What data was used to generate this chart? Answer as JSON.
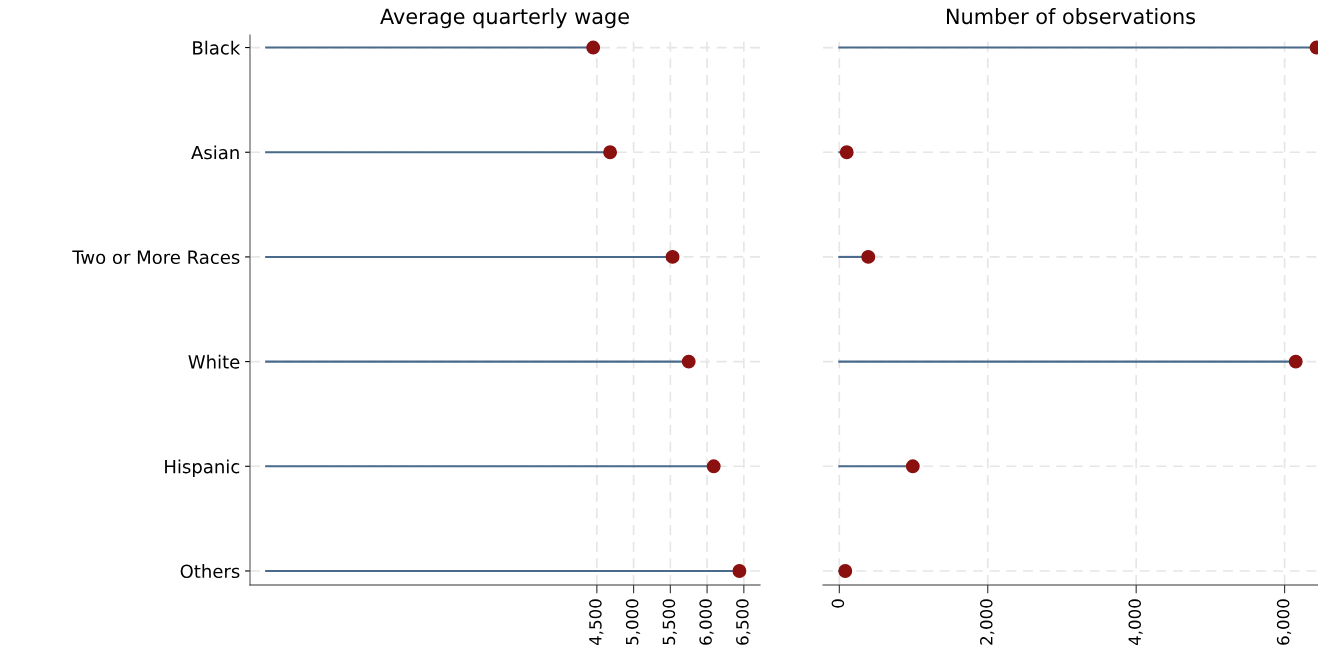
{
  "chart_data": [
    {
      "type": "lollipop",
      "title": "Average quarterly wage",
      "orientation": "horizontal",
      "categories": [
        "Black",
        "Asian",
        "Two or More Races",
        "White",
        "Hispanic",
        "Others"
      ],
      "series": [
        {
          "color": "#8b1010",
          "values": [
            4450,
            4680,
            5530,
            5750,
            6090,
            6440
          ]
        }
      ],
      "xlim": [
        -220,
        6720
      ],
      "xticks": [
        {
          "value": 4500,
          "label": "4,500"
        },
        {
          "value": 5000,
          "label": "5,000"
        },
        {
          "value": 5500,
          "label": "5,500"
        },
        {
          "value": 6000,
          "label": "6,000"
        },
        {
          "value": 6500,
          "label": "6,500"
        }
      ],
      "grid": true,
      "marker": "circle"
    },
    {
      "type": "lollipop",
      "title": "Number of observations",
      "orientation": "horizontal",
      "categories": [
        null,
        null,
        null,
        null,
        null,
        null
      ],
      "series": [
        {
          "color": "#8b1010",
          "values": [
            6430,
            100,
            390,
            6150,
            990,
            80
          ]
        }
      ],
      "xlim": [
        -220,
        6450
      ],
      "xticks": [
        0,
        {
          "value": 2000,
          "label": "2,000"
        },
        {
          "value": 4000,
          "label": "4,000"
        },
        {
          "value": 6000,
          "label": "6,000"
        }
      ],
      "grid": true,
      "marker": "circle",
      "tick_labels": "x"
    }
  ]
}
